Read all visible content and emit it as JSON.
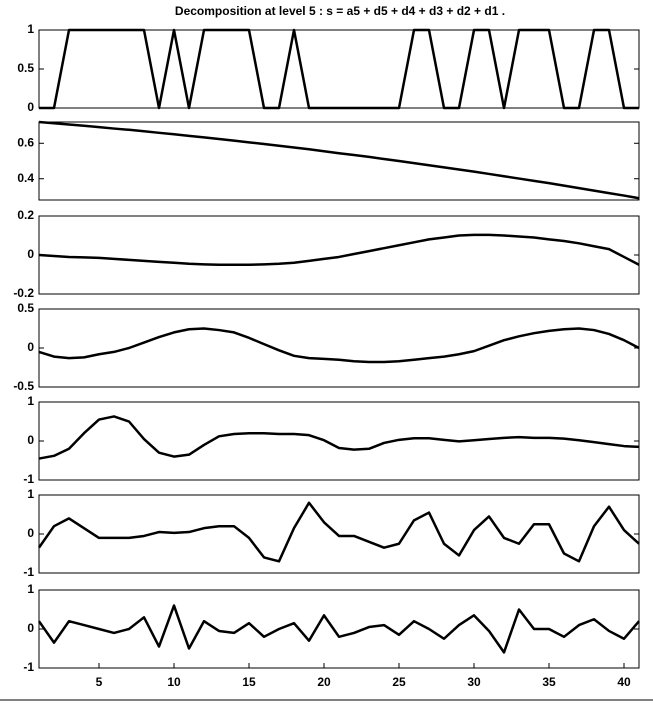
{
  "chart_data": [
    {
      "type": "line",
      "title": "Decomposition at level 5 : s  = a5 + d5 + d4 + d3 + d2 + d1 .",
      "x": [
        1,
        2,
        3,
        4,
        5,
        6,
        7,
        8,
        9,
        10,
        11,
        12,
        13,
        14,
        15,
        16,
        17,
        18,
        19,
        20,
        21,
        22,
        23,
        24,
        25,
        26,
        27,
        28,
        29,
        30,
        31,
        32,
        33,
        34,
        35,
        36,
        37,
        38,
        39,
        40,
        41
      ],
      "series": [
        {
          "color": "#000000",
          "values": [
            0,
            0,
            1,
            1,
            1,
            1,
            1,
            1,
            0,
            1,
            0,
            1,
            1,
            1,
            1,
            0,
            0,
            1,
            0,
            0,
            0,
            0,
            0,
            0,
            0,
            1,
            1,
            0,
            0,
            1,
            1,
            0,
            1,
            1,
            1,
            0,
            0,
            1,
            1,
            0,
            0
          ]
        }
      ],
      "xlim": [
        1,
        41
      ],
      "ylim": [
        0,
        1
      ],
      "yticks": [
        0,
        0.5,
        1
      ]
    },
    {
      "type": "line",
      "x": [
        1,
        2,
        3,
        4,
        5,
        6,
        7,
        8,
        9,
        10,
        11,
        12,
        13,
        14,
        15,
        16,
        17,
        18,
        19,
        20,
        21,
        22,
        23,
        24,
        25,
        26,
        27,
        28,
        29,
        30,
        31,
        32,
        33,
        34,
        35,
        36,
        37,
        38,
        39,
        40,
        41
      ],
      "series": [
        {
          "color": "#000000",
          "values": [
            0.72,
            0.713,
            0.706,
            0.699,
            0.691,
            0.683,
            0.676,
            0.668,
            0.659,
            0.651,
            0.642,
            0.633,
            0.624,
            0.615,
            0.605,
            0.596,
            0.586,
            0.576,
            0.566,
            0.555,
            0.544,
            0.534,
            0.523,
            0.511,
            0.5,
            0.488,
            0.476,
            0.464,
            0.452,
            0.44,
            0.427,
            0.414,
            0.401,
            0.388,
            0.375,
            0.361,
            0.347,
            0.333,
            0.319,
            0.305,
            0.29
          ]
        }
      ],
      "xlim": [
        1,
        41
      ],
      "ylim": [
        0.28,
        0.72
      ],
      "yticks": [
        0.4,
        0.6
      ]
    },
    {
      "type": "line",
      "x": [
        1,
        2,
        3,
        4,
        5,
        6,
        7,
        8,
        9,
        10,
        11,
        12,
        13,
        14,
        15,
        16,
        17,
        18,
        19,
        20,
        21,
        22,
        23,
        24,
        25,
        26,
        27,
        28,
        29,
        30,
        31,
        32,
        33,
        34,
        35,
        36,
        37,
        38,
        39,
        40,
        41
      ],
      "series": [
        {
          "color": "#000000",
          "values": [
            0,
            -0.005,
            -0.01,
            -0.012,
            -0.015,
            -0.02,
            -0.025,
            -0.03,
            -0.035,
            -0.04,
            -0.045,
            -0.048,
            -0.05,
            -0.05,
            -0.05,
            -0.048,
            -0.045,
            -0.04,
            -0.03,
            -0.02,
            -0.01,
            0.005,
            0.02,
            0.035,
            0.05,
            0.065,
            0.08,
            0.09,
            0.1,
            0.103,
            0.103,
            0.1,
            0.095,
            0.09,
            0.08,
            0.072,
            0.06,
            0.045,
            0.03,
            -0.01,
            -0.05
          ]
        }
      ],
      "xlim": [
        1,
        41
      ],
      "ylim": [
        -0.2,
        0.2
      ],
      "yticks": [
        -0.2,
        0,
        0.2
      ]
    },
    {
      "type": "line",
      "x": [
        1,
        2,
        3,
        4,
        5,
        6,
        7,
        8,
        9,
        10,
        11,
        12,
        13,
        14,
        15,
        16,
        17,
        18,
        19,
        20,
        21,
        22,
        23,
        24,
        25,
        26,
        27,
        28,
        29,
        30,
        31,
        32,
        33,
        34,
        35,
        36,
        37,
        38,
        39,
        40,
        41
      ],
      "series": [
        {
          "color": "#000000",
          "values": [
            -0.05,
            -0.11,
            -0.13,
            -0.12,
            -0.08,
            -0.05,
            0,
            0.07,
            0.14,
            0.2,
            0.24,
            0.25,
            0.23,
            0.2,
            0.13,
            0.05,
            -0.03,
            -0.1,
            -0.13,
            -0.14,
            -0.15,
            -0.17,
            -0.18,
            -0.18,
            -0.17,
            -0.15,
            -0.13,
            -0.11,
            -0.08,
            -0.04,
            0.03,
            0.1,
            0.15,
            0.19,
            0.22,
            0.24,
            0.25,
            0.23,
            0.18,
            0.1,
            0
          ]
        }
      ],
      "xlim": [
        1,
        41
      ],
      "ylim": [
        -0.5,
        0.5
      ],
      "yticks": [
        -0.5,
        0,
        0.5
      ]
    },
    {
      "type": "line",
      "x": [
        1,
        2,
        3,
        4,
        5,
        6,
        7,
        8,
        9,
        10,
        11,
        12,
        13,
        14,
        15,
        16,
        17,
        18,
        19,
        20,
        21,
        22,
        23,
        24,
        25,
        26,
        27,
        28,
        29,
        30,
        31,
        32,
        33,
        34,
        35,
        36,
        37,
        38,
        39,
        40,
        41
      ],
      "series": [
        {
          "color": "#000000",
          "values": [
            -0.45,
            -0.38,
            -0.2,
            0.2,
            0.55,
            0.63,
            0.5,
            0.05,
            -0.3,
            -0.4,
            -0.35,
            -0.1,
            0.12,
            0.18,
            0.2,
            0.2,
            0.18,
            0.18,
            0.15,
            0.02,
            -0.18,
            -0.22,
            -0.2,
            -0.05,
            0.03,
            0.07,
            0.07,
            0.03,
            -0.01,
            0.02,
            0.05,
            0.08,
            0.1,
            0.08,
            0.08,
            0.06,
            0.02,
            -0.03,
            -0.08,
            -0.13,
            -0.15
          ]
        }
      ],
      "xlim": [
        1,
        41
      ],
      "ylim": [
        -1,
        1
      ],
      "yticks": [
        -1,
        0,
        1
      ]
    },
    {
      "type": "line",
      "x": [
        1,
        2,
        3,
        4,
        5,
        6,
        7,
        8,
        9,
        10,
        11,
        12,
        13,
        14,
        15,
        16,
        17,
        18,
        19,
        20,
        21,
        22,
        23,
        24,
        25,
        26,
        27,
        28,
        29,
        30,
        31,
        32,
        33,
        34,
        35,
        36,
        37,
        38,
        39,
        40,
        41
      ],
      "series": [
        {
          "color": "#000000",
          "values": [
            -0.35,
            0.2,
            0.4,
            0.15,
            -0.1,
            -0.1,
            -0.1,
            -0.05,
            0.05,
            0.03,
            0.05,
            0.15,
            0.2,
            0.2,
            -0.1,
            -0.6,
            -0.7,
            0.15,
            0.8,
            0.3,
            -0.05,
            -0.05,
            -0.2,
            -0.35,
            -0.25,
            0.35,
            0.55,
            -0.25,
            -0.55,
            0.1,
            0.45,
            -0.1,
            -0.25,
            0.25,
            0.25,
            -0.5,
            -0.7,
            0.2,
            0.7,
            0.1,
            -0.25
          ]
        }
      ],
      "xlim": [
        1,
        41
      ],
      "ylim": [
        -1,
        1
      ],
      "yticks": [
        -1,
        0,
        1
      ]
    },
    {
      "type": "line",
      "x": [
        1,
        2,
        3,
        4,
        5,
        6,
        7,
        8,
        9,
        10,
        11,
        12,
        13,
        14,
        15,
        16,
        17,
        18,
        19,
        20,
        21,
        22,
        23,
        24,
        25,
        26,
        27,
        28,
        29,
        30,
        31,
        32,
        33,
        34,
        35,
        36,
        37,
        38,
        39,
        40,
        41
      ],
      "series": [
        {
          "color": "#000000",
          "values": [
            0.2,
            -0.35,
            0.2,
            0.1,
            0,
            -0.1,
            0,
            0.3,
            -0.45,
            0.6,
            -0.5,
            0.2,
            -0.05,
            -0.1,
            0.15,
            -0.2,
            0,
            0.15,
            -0.3,
            0.35,
            -0.2,
            -0.1,
            0.05,
            0.1,
            -0.15,
            0.2,
            0,
            -0.25,
            0.1,
            0.35,
            -0.05,
            -0.6,
            0.5,
            0,
            0,
            -0.2,
            0.1,
            0.25,
            -0.05,
            -0.25,
            0.2
          ]
        }
      ],
      "xlim": [
        1,
        41
      ],
      "ylim": [
        -1,
        1
      ],
      "yticks": [
        -1,
        0,
        1
      ],
      "xticks": [
        5,
        10,
        15,
        20,
        25,
        30,
        35,
        40
      ]
    }
  ]
}
